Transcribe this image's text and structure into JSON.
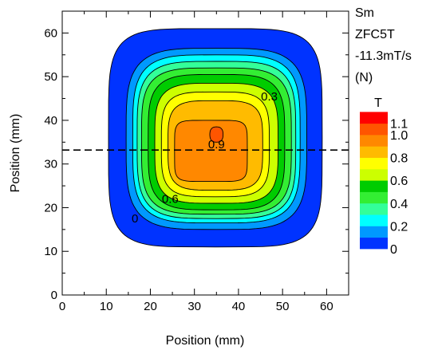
{
  "chart_data": {
    "type": "heatmap",
    "xlabel": "Position (mm)",
    "ylabel": "Position (mm)",
    "xlim": [
      0,
      65
    ],
    "ylim": [
      0,
      65
    ],
    "x_ticks": [
      "0",
      "10",
      "20",
      "30",
      "40",
      "50",
      "60"
    ],
    "y_ticks": [
      "0",
      "10",
      "20",
      "30",
      "40",
      "50",
      "60"
    ],
    "annotation_lines": [
      "Sm",
      "ZFC5T",
      "-11.3mT/s",
      "(N)"
    ],
    "colorbar": {
      "unit": "T",
      "tick_labels": [
        "0",
        "0.2",
        "0.4",
        "0.6",
        "0.8",
        "1.0",
        "1.1"
      ],
      "levels": [
        {
          "from": 0.0,
          "to": 0.1,
          "color": "#0033ff"
        },
        {
          "from": 0.1,
          "to": 0.2,
          "color": "#0099ff"
        },
        {
          "from": 0.2,
          "to": 0.3,
          "color": "#00ffff"
        },
        {
          "from": 0.3,
          "to": 0.4,
          "color": "#33ff99"
        },
        {
          "from": 0.4,
          "to": 0.5,
          "color": "#33ee33"
        },
        {
          "from": 0.5,
          "to": 0.6,
          "color": "#00cc00"
        },
        {
          "from": 0.6,
          "to": 0.7,
          "color": "#ccff00"
        },
        {
          "from": 0.7,
          "to": 0.8,
          "color": "#ffff00"
        },
        {
          "from": 0.8,
          "to": 0.9,
          "color": "#ffbb00"
        },
        {
          "from": 0.9,
          "to": 1.0,
          "color": "#ff8800"
        },
        {
          "from": 1.0,
          "to": 1.1,
          "color": "#ff5500"
        },
        {
          "from": 1.1,
          "to": 1.2,
          "color": "#ff0000"
        }
      ]
    },
    "contour_labels": [
      {
        "text": "0",
        "x": 16.5,
        "y": 17.5
      },
      {
        "text": "0.3",
        "x": 47,
        "y": 45.5
      },
      {
        "text": "0.6",
        "x": 24.5,
        "y": 22
      },
      {
        "text": "0.9",
        "x": 35,
        "y": 34.5
      }
    ],
    "dashed_line_y": 33.2,
    "contours": [
      {
        "value": 0.0,
        "color": "#0033ff",
        "xr": [
          10.5,
          59
        ],
        "yr": [
          11,
          61
        ],
        "n": 5
      },
      {
        "value": 0.1,
        "color": "#0099ff",
        "xr": [
          14.5,
          55.5
        ],
        "yr": [
          15,
          56.5
        ],
        "n": 4
      },
      {
        "value": 0.2,
        "color": "#00ffff",
        "xr": [
          16,
          54
        ],
        "yr": [
          16.5,
          55
        ],
        "n": 4
      },
      {
        "value": 0.3,
        "color": "#33ff99",
        "xr": [
          17,
          53
        ],
        "yr": [
          17.5,
          53.5
        ],
        "n": 4
      },
      {
        "value": 0.4,
        "color": "#33ee33",
        "xr": [
          18,
          52
        ],
        "yr": [
          18.5,
          52
        ],
        "n": 4
      },
      {
        "value": 0.5,
        "color": "#00cc00",
        "xr": [
          19.5,
          50.5
        ],
        "yr": [
          19.5,
          50.5
        ],
        "n": 4
      },
      {
        "value": 0.6,
        "color": "#ccff00",
        "xr": [
          21,
          49
        ],
        "yr": [
          21,
          48.5
        ],
        "n": 4
      },
      {
        "value": 0.7,
        "color": "#ffff00",
        "xr": [
          22.5,
          47
        ],
        "yr": [
          22.5,
          46.5
        ],
        "n": 4
      },
      {
        "value": 0.8,
        "color": "#ffbb00",
        "xr": [
          24,
          45.5
        ],
        "yr": [
          24,
          44.5
        ],
        "n": 4
      },
      {
        "value": 0.9,
        "color": "#ff8800",
        "xr": [
          25.5,
          42
        ],
        "yr": [
          26,
          40
        ],
        "n": 6
      },
      {
        "value": 1.0,
        "color": "#ff5500",
        "xr": [
          33.5,
          36.5
        ],
        "yr": [
          35,
          38.5
        ],
        "n": 2.5
      }
    ]
  }
}
